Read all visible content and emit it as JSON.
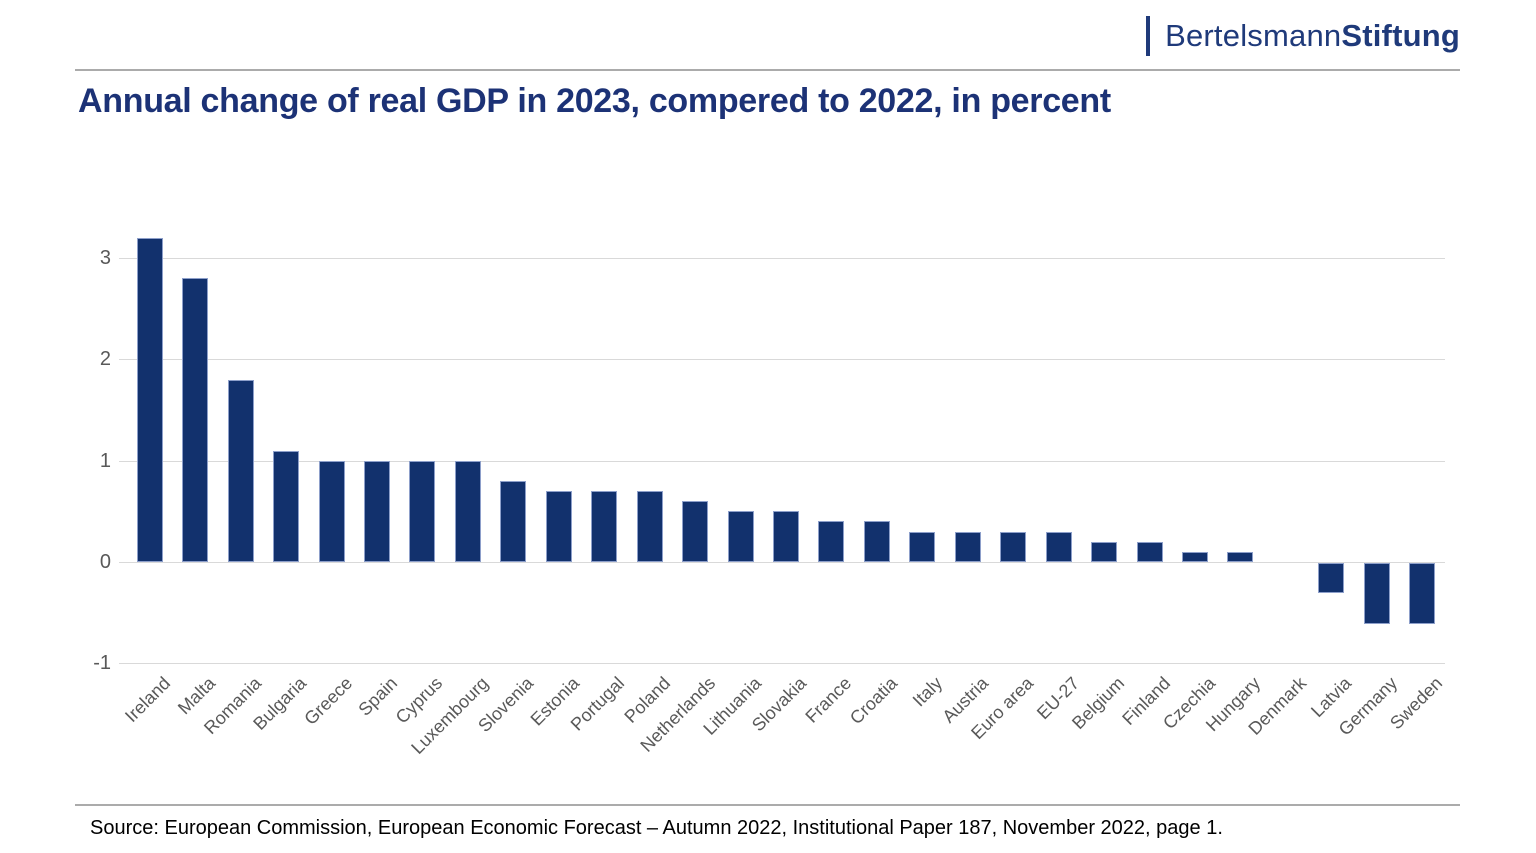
{
  "header": {
    "logo": {
      "name_regular": "Bertelsmann",
      "name_bold": "Stiftung",
      "color": "#1f3a7a"
    }
  },
  "title": "Annual change of real GDP in 2023, compered to 2022, in percent",
  "footer": {
    "source": "Source: European Commission, European Economic Forecast – Autumn 2022, Institutional Paper 187, November 2022, page 1."
  },
  "chart_data": {
    "type": "bar",
    "title": "Annual change of real GDP in 2023, compered to 2022, in percent",
    "categories": [
      "Ireland",
      "Malta",
      "Romania",
      "Bulgaria",
      "Greece",
      "Spain",
      "Cyprus",
      "Luxembourg",
      "Slovenia",
      "Estonia",
      "Portugal",
      "Poland",
      "Netherlands",
      "Lithuania",
      "Slovakia",
      "France",
      "Croatia",
      "Italy",
      "Austria",
      "Euro area",
      "EU-27",
      "Belgium",
      "Finland",
      "Czechia",
      "Hungary",
      "Denmark",
      "Latvia",
      "Germany",
      "Sweden"
    ],
    "values": [
      3.2,
      2.8,
      1.8,
      1.1,
      1.0,
      1.0,
      1.0,
      1.0,
      0.8,
      0.7,
      0.7,
      0.7,
      0.6,
      0.5,
      0.5,
      0.4,
      0.4,
      0.3,
      0.3,
      0.3,
      0.3,
      0.2,
      0.2,
      0.1,
      0.1,
      0.0,
      -0.3,
      -0.6,
      -0.6
    ],
    "xlabel": "",
    "ylabel": "",
    "yticks": [
      3,
      2,
      1,
      0,
      -1
    ],
    "ylim": [
      -1,
      3.4
    ],
    "grid": true,
    "legend": false,
    "bar_color": "#12316d",
    "bar_border_color": "#8d9fca",
    "gridline_color": "#d9d9d9",
    "tick_label_color": "#595959"
  }
}
